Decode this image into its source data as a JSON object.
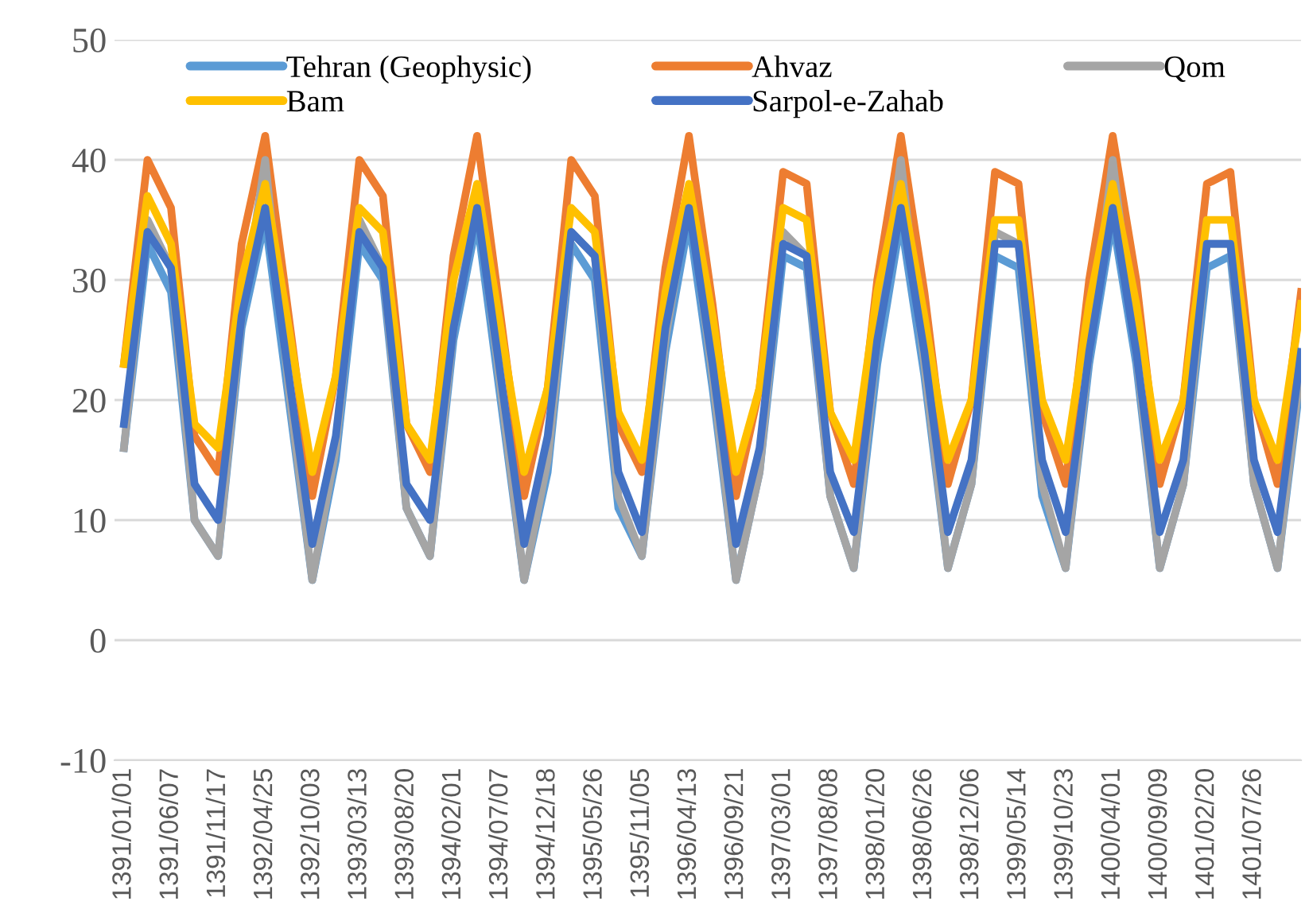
{
  "chart_data": {
    "type": "line",
    "categories": [
      "1391/01/01",
      null,
      "1391/06/07",
      null,
      "1391/11/17",
      null,
      "1392/04/25",
      null,
      "1392/10/03",
      null,
      "1393/03/13",
      null,
      "1393/08/20",
      null,
      "1394/02/01",
      null,
      "1394/07/07",
      null,
      "1394/12/18",
      null,
      "1395/05/26",
      null,
      "1395/11/05",
      null,
      "1396/04/13",
      null,
      "1396/09/21",
      null,
      "1397/03/01",
      null,
      "1397/08/08",
      null,
      "1398/01/20",
      null,
      "1398/06/26",
      null,
      "1398/12/06",
      null,
      "1399/05/14",
      null,
      "1399/10/23",
      null,
      "1400/04/01",
      null,
      "1400/09/09",
      null,
      "1401/02/20",
      null,
      "1401/07/26",
      null,
      null
    ],
    "series": [
      {
        "name": "Tehran (Geophysic)",
        "color": "#5b9bd5",
        "values": [
          16,
          33,
          29,
          10,
          7,
          26,
          35,
          20,
          5,
          15,
          33,
          30,
          11,
          7,
          25,
          35,
          20,
          5,
          14,
          33,
          30,
          11,
          7,
          24,
          35,
          21,
          5,
          14,
          32,
          31,
          12,
          6,
          23,
          35,
          22,
          6,
          13,
          32,
          31,
          12,
          6,
          23,
          35,
          23,
          6,
          13,
          31,
          32,
          13,
          6,
          22
        ]
      },
      {
        "name": "Ahvaz",
        "color": "#ed7d31",
        "values": [
          23,
          40,
          36,
          17,
          14,
          33,
          42,
          27,
          12,
          22,
          40,
          37,
          18,
          14,
          32,
          42,
          27,
          12,
          21,
          40,
          37,
          18,
          14,
          31,
          42,
          28,
          12,
          21,
          39,
          38,
          19,
          13,
          30,
          42,
          29,
          13,
          20,
          39,
          38,
          19,
          13,
          30,
          42,
          30,
          13,
          20,
          38,
          39,
          20,
          13,
          29
        ]
      },
      {
        "name": "Qom",
        "color": "#a5a5a5",
        "values": [
          16,
          35,
          31,
          10,
          7,
          27,
          40,
          21,
          5,
          16,
          35,
          31,
          11,
          7,
          26,
          37,
          21,
          5,
          15,
          34,
          32,
          12,
          7,
          25,
          37,
          22,
          5,
          14,
          34,
          32,
          12,
          6,
          25,
          40,
          23,
          6,
          13,
          34,
          33,
          13,
          6,
          24,
          40,
          24,
          6,
          13,
          33,
          33,
          13,
          6,
          23
        ]
      },
      {
        "name": "Bam",
        "color": "#ffc000",
        "values": [
          23,
          37,
          33,
          18,
          16,
          30,
          38,
          26,
          14,
          22,
          36,
          34,
          18,
          15,
          30,
          38,
          26,
          14,
          21,
          36,
          34,
          19,
          15,
          29,
          38,
          27,
          14,
          21,
          36,
          35,
          19,
          15,
          29,
          38,
          27,
          15,
          20,
          35,
          35,
          20,
          15,
          28,
          38,
          28,
          15,
          20,
          35,
          35,
          20,
          15,
          28
        ]
      },
      {
        "name": "Sarpol-e-Zahab",
        "color": "#4472c4",
        "values": [
          18,
          34,
          31,
          13,
          10,
          27,
          36,
          22,
          8,
          17,
          34,
          31,
          13,
          10,
          26,
          36,
          22,
          8,
          17,
          34,
          32,
          14,
          9,
          26,
          36,
          23,
          8,
          16,
          33,
          32,
          14,
          9,
          25,
          36,
          24,
          9,
          15,
          33,
          33,
          15,
          9,
          24,
          36,
          24,
          9,
          15,
          33,
          33,
          15,
          9,
          24
        ]
      }
    ],
    "ylim": [
      -10,
      50
    ],
    "yticks": [
      -10,
      0,
      10,
      20,
      30,
      40,
      50
    ],
    "grid": "y",
    "legend": "top"
  }
}
